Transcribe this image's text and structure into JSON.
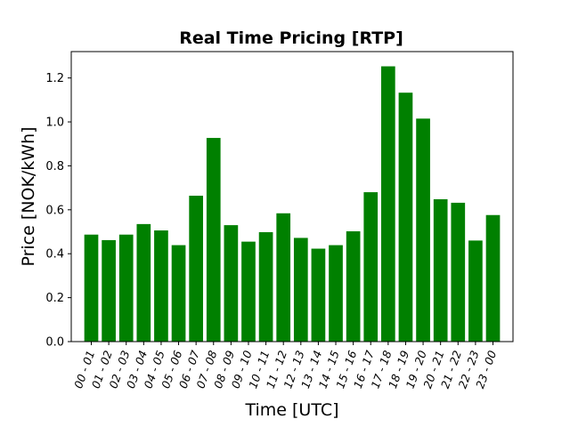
{
  "chart_data": {
    "type": "bar",
    "title": "Real Time Pricing [RTP]",
    "xlabel": "Time [UTC]",
    "ylabel": "Price [NOK/kWh]",
    "ylim": [
      0,
      1.32
    ],
    "yticks": [
      "0.0",
      "0.2",
      "0.4",
      "0.6",
      "0.8",
      "1.0",
      "1.2"
    ],
    "grid": false,
    "bar_color": "#008000",
    "categories": [
      "00 - 01",
      "01 - 02",
      "02 - 03",
      "03 - 04",
      "04 - 05",
      "05 - 06",
      "06 - 07",
      "07 - 08",
      "08 - 09",
      "09 - 10",
      "10 - 11",
      "11 - 12",
      "12 - 13",
      "13 - 14",
      "14 - 15",
      "15 - 16",
      "16 - 17",
      "17 - 18",
      "18 - 19",
      "19 - 20",
      "20 - 21",
      "21 - 22",
      "22 - 23",
      "23 - 00"
    ],
    "values": [
      0.487,
      0.462,
      0.487,
      0.535,
      0.506,
      0.439,
      0.664,
      0.927,
      0.53,
      0.455,
      0.498,
      0.584,
      0.472,
      0.423,
      0.439,
      0.502,
      0.68,
      1.253,
      1.133,
      1.015,
      0.648,
      0.632,
      0.46,
      0.576
    ]
  }
}
